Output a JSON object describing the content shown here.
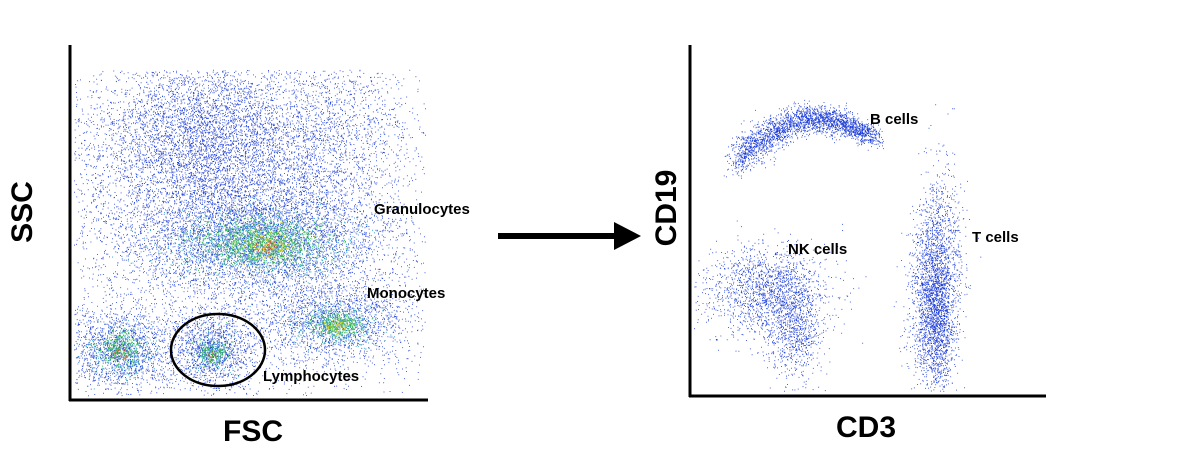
{
  "plots": [
    {
      "x_label": "FSC",
      "y_label": "SSC",
      "populations": [
        "Granulocytes",
        "Monocytes",
        "Lymphocytes"
      ]
    },
    {
      "x_label": "CD3",
      "y_label": "CD19",
      "populations": [
        "B cells",
        "NK cells",
        "T cells"
      ]
    }
  ]
}
